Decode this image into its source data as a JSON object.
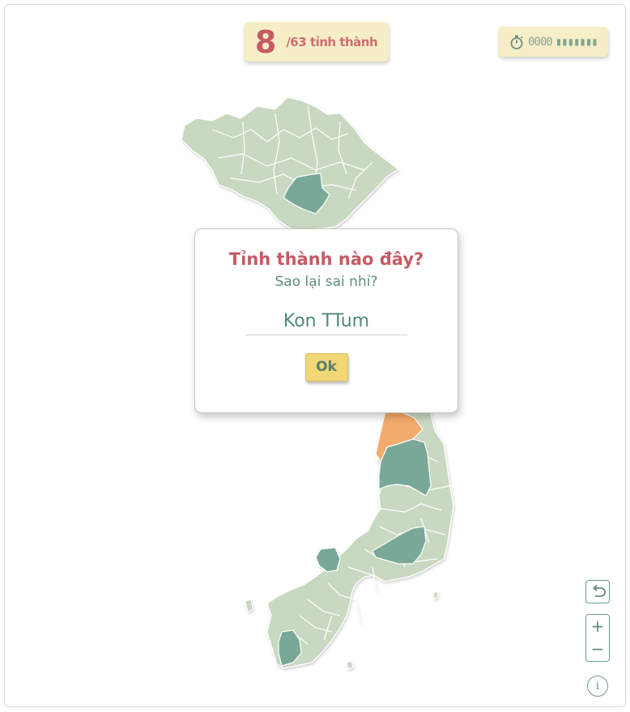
{
  "score": {
    "count": "8",
    "total_label": "/63 tỉnh thành"
  },
  "timer": {
    "icon": "stopwatch-icon",
    "dim_digits": "0000",
    "lit_digits": "▮▮▮▮▮▮▮"
  },
  "dialog": {
    "title": "Tỉnh thành nào đây?",
    "subtitle": "Sao lại sai nhỉ?",
    "input_value": "Kon TTum",
    "ok_label": "Ok"
  },
  "controls": {
    "undo_icon": "undo-icon",
    "zoom_in": "+",
    "zoom_out": "−",
    "info": "i"
  },
  "colors": {
    "province_default": "#c9d8c1",
    "province_found": "#7aa898",
    "province_current": "#f4ab6e",
    "accent_red": "#c65a64",
    "badge_bg": "#f6eec7",
    "button_yellow": "#f1d775"
  }
}
